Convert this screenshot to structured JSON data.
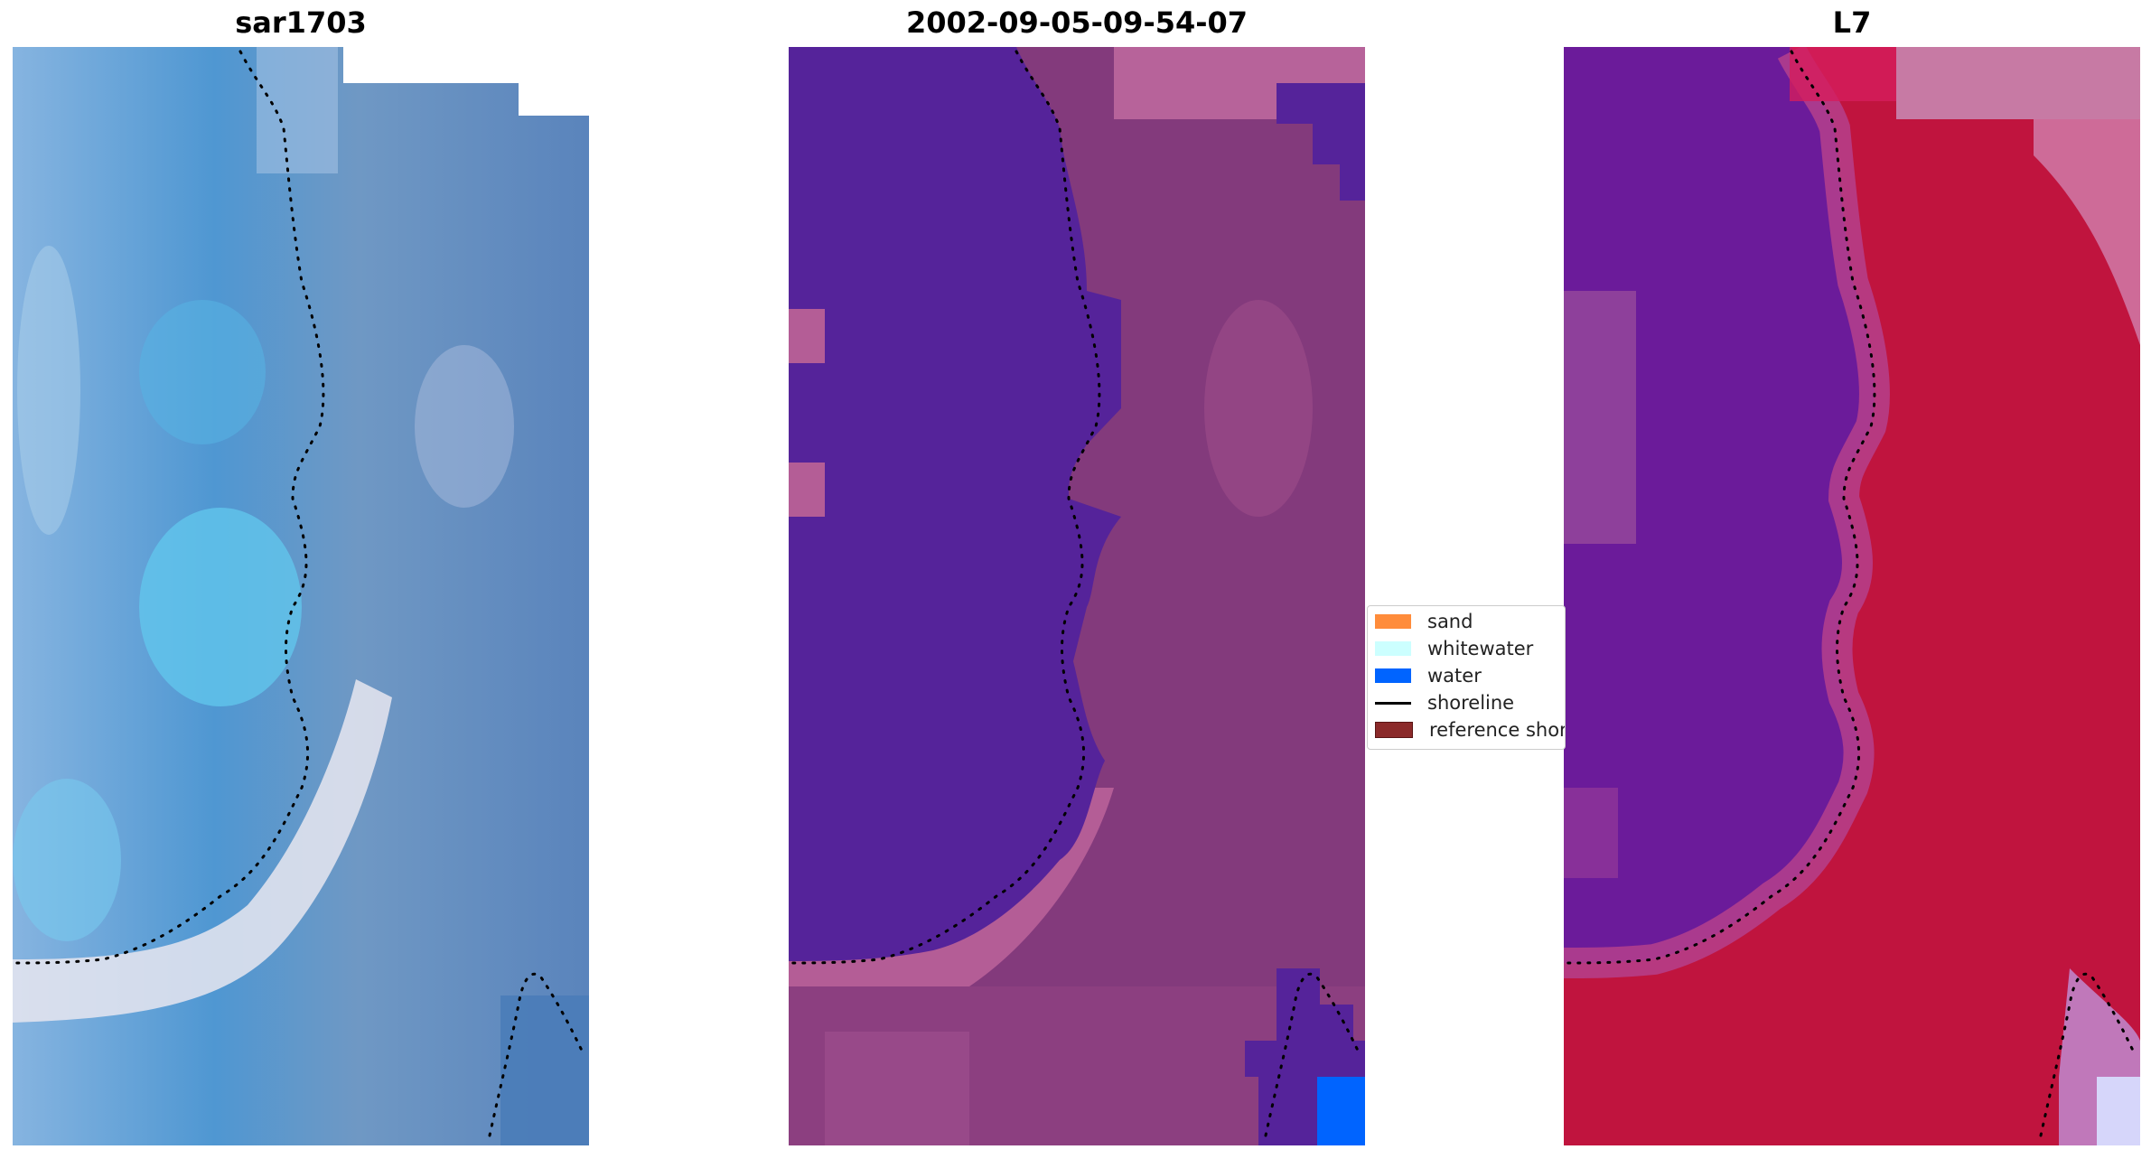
{
  "panels": [
    {
      "title": "sar1703",
      "kind": "rgb"
    },
    {
      "title": "2002-09-05-09-54-07",
      "kind": "classified"
    },
    {
      "title": "L7",
      "kind": "index"
    }
  ],
  "legend": {
    "items": [
      {
        "label": "sand",
        "color": "#ff8c3b",
        "type": "patch"
      },
      {
        "label": "whitewater",
        "color": "#ccffff",
        "type": "patch"
      },
      {
        "label": "water",
        "color": "#0064ff",
        "type": "patch"
      },
      {
        "label": "shoreline",
        "color": "#000000",
        "type": "line"
      },
      {
        "label": "reference shoreline",
        "color": "#8b2a2a",
        "type": "patch"
      }
    ]
  },
  "colors": {
    "sar_base": "#5b8ec4",
    "sar_light": "#6fd0f0",
    "sar_white": "#f0eef4",
    "class_water": "#55239a",
    "class_land": "#833a7c",
    "class_pink": "#b75f97",
    "class_blue": "#0064ff",
    "index_purple": "#6b1b9a",
    "index_red": "#c3103a",
    "index_pink": "#d67aa8",
    "index_pale": "#d6d6fa"
  }
}
